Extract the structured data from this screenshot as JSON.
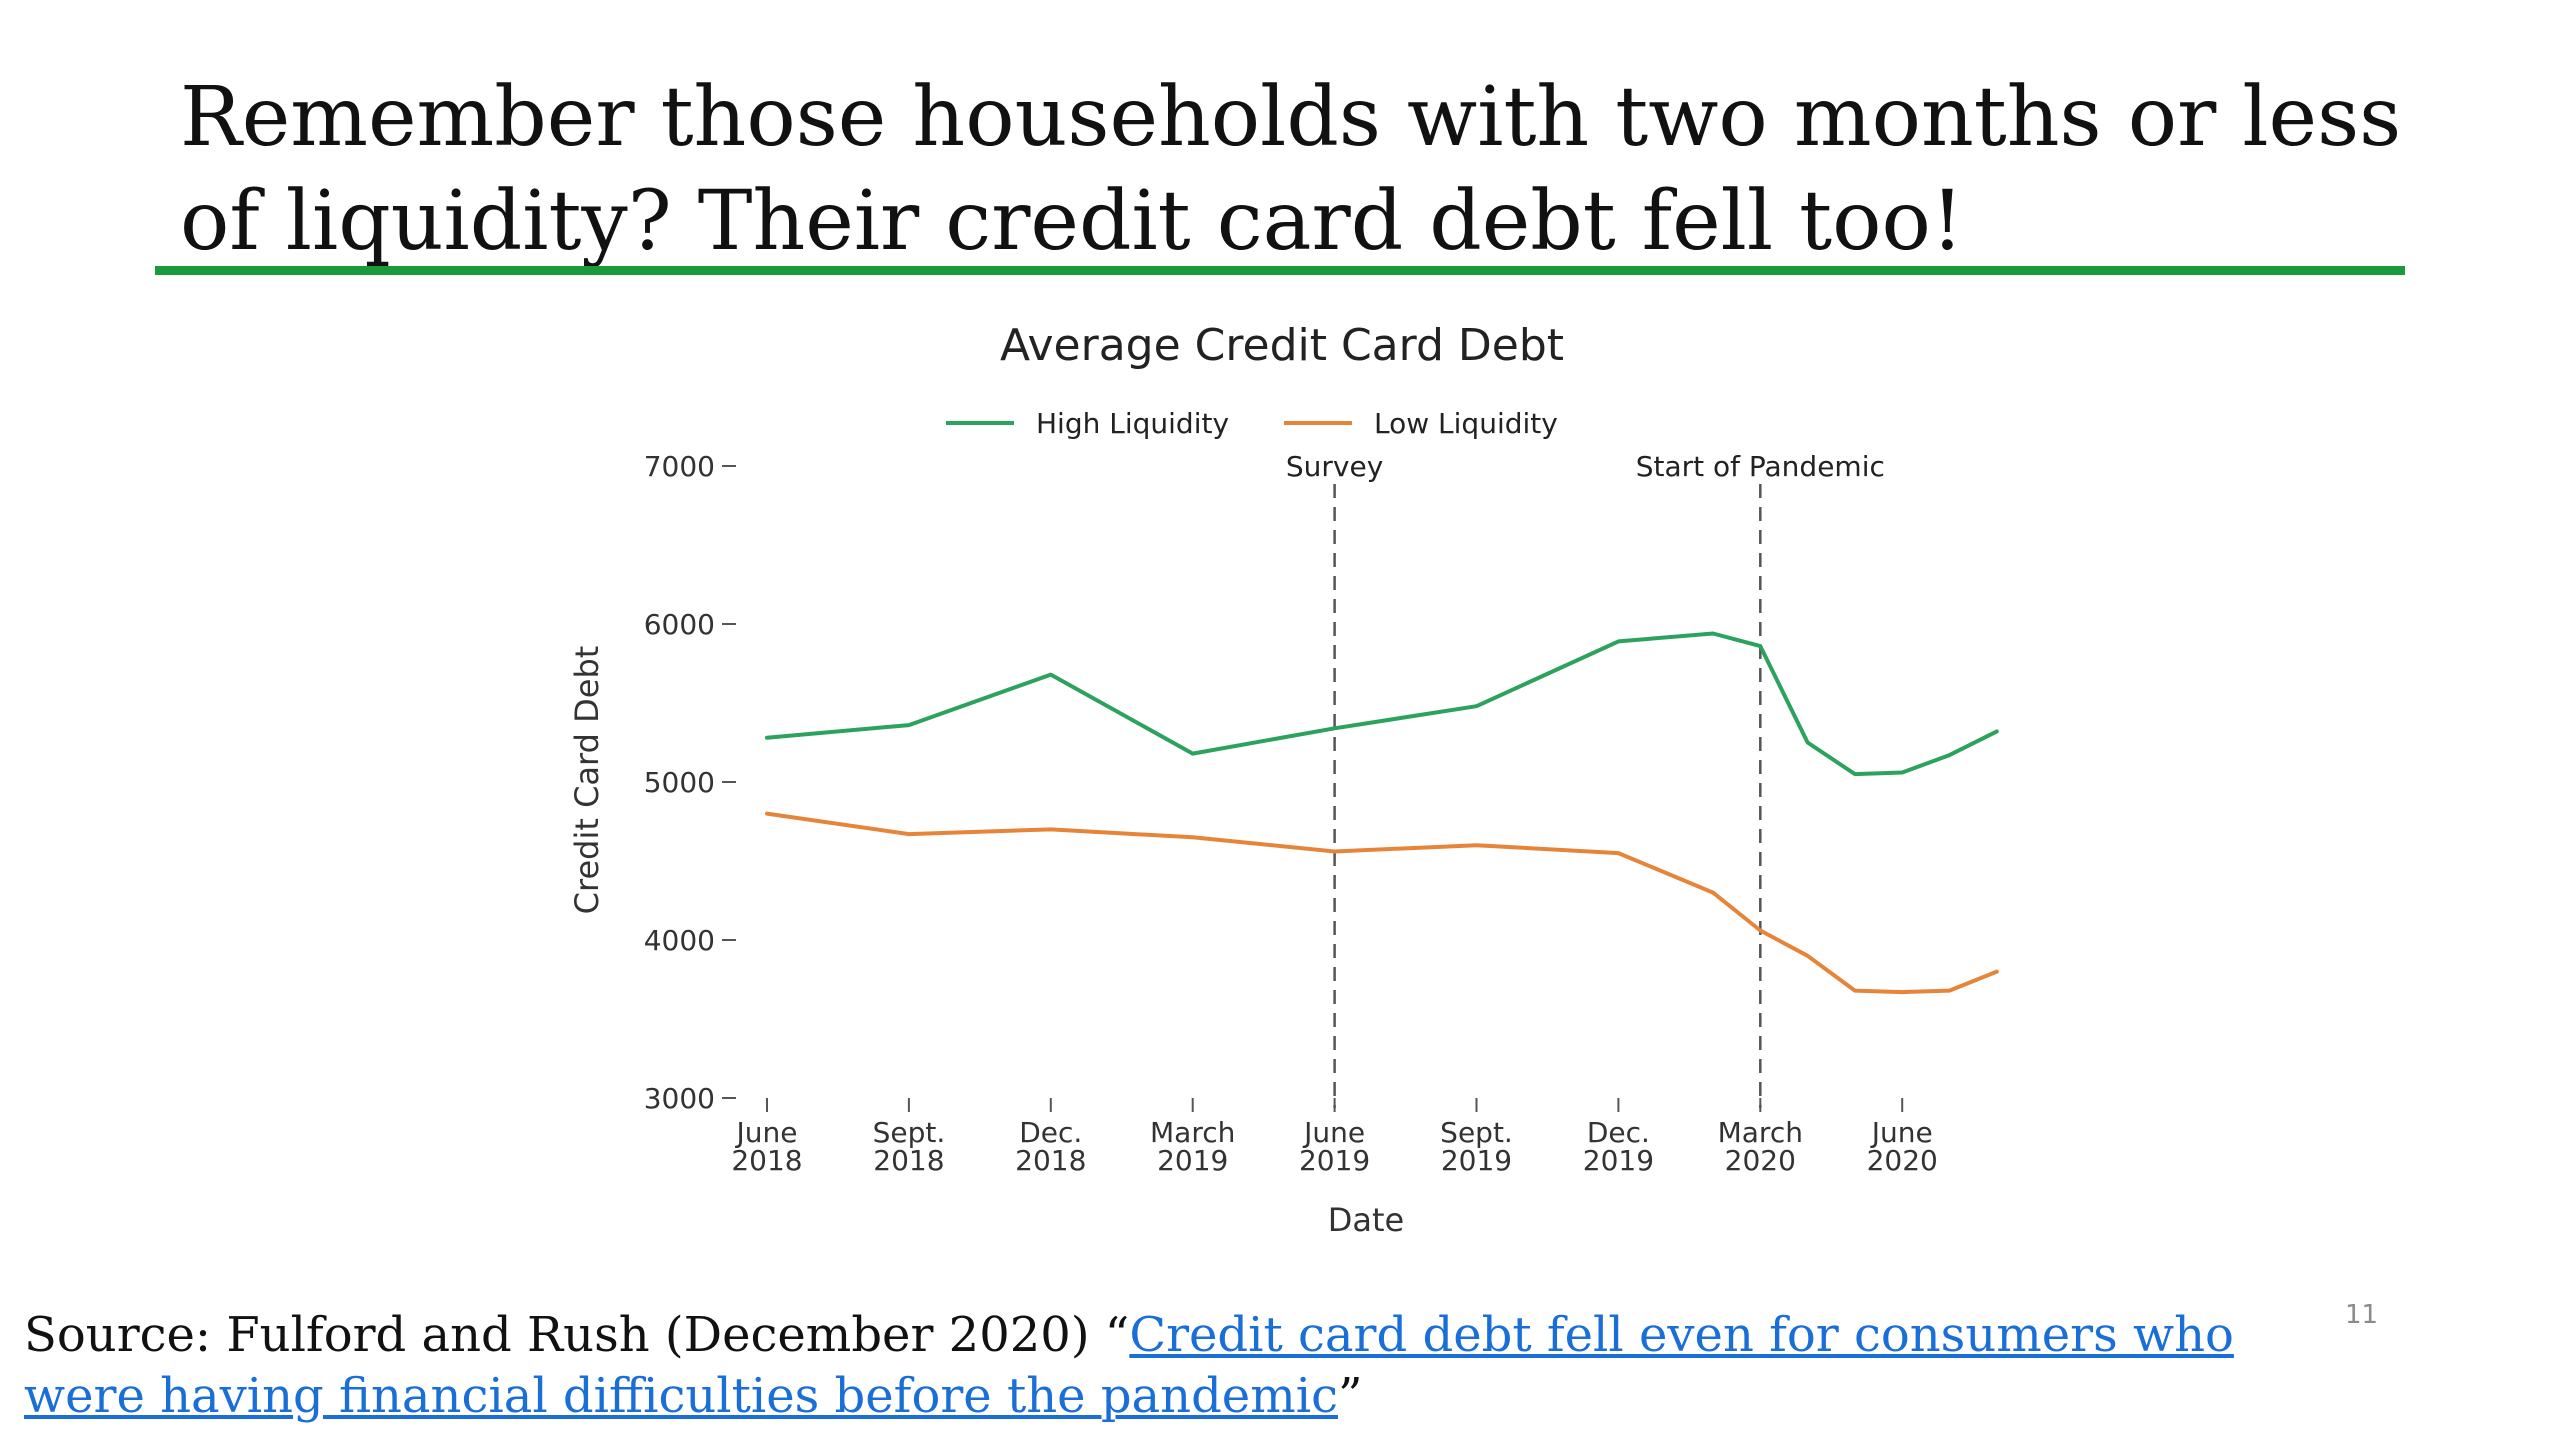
{
  "slide": {
    "title": "Remember those households with two months or less of liquidity? Their credit card debt fell too!",
    "accent_color": "#1a9b3b",
    "number": "11"
  },
  "source": {
    "prefix": "Source: Fulford and Rush (December 2020) “",
    "link_text": "Credit card debt fell even for consumers who were having financial difficulties before the pandemic",
    "suffix": "”",
    "link_color": "#1a6ed8"
  },
  "chart_data": {
    "type": "line",
    "title": "Average Credit Card Debt",
    "xlabel": "Date",
    "ylabel": "Credit Card Debt",
    "ylim": [
      3000,
      7000
    ],
    "yticks": [
      3000,
      4000,
      5000,
      6000,
      7000
    ],
    "xticks": [
      {
        "month": 0,
        "line1": "June",
        "line2": "2018"
      },
      {
        "month": 3,
        "line1": "Sept.",
        "line2": "2018"
      },
      {
        "month": 6,
        "line1": "Dec.",
        "line2": "2018"
      },
      {
        "month": 9,
        "line1": "March",
        "line2": "2019"
      },
      {
        "month": 12,
        "line1": "June",
        "line2": "2019"
      },
      {
        "month": 15,
        "line1": "Sept.",
        "line2": "2019"
      },
      {
        "month": 18,
        "line1": "Dec.",
        "line2": "2019"
      },
      {
        "month": 21,
        "line1": "March",
        "line2": "2020"
      },
      {
        "month": 24,
        "line1": "June",
        "line2": "2020"
      }
    ],
    "x": [
      "2018-06",
      "2018-09",
      "2018-12",
      "2019-03",
      "2019-06",
      "2019-09",
      "2019-12",
      "2020-02",
      "2020-03",
      "2020-04",
      "2020-05",
      "2020-06",
      "2020-07",
      "2020-08"
    ],
    "series": [
      {
        "name": "High Liquidity",
        "color": "#2ca25f",
        "values": [
          5280,
          5360,
          5680,
          5180,
          5340,
          5480,
          5890,
          5940,
          5860,
          5250,
          5050,
          5060,
          5170,
          5320
        ]
      },
      {
        "name": "Low Liquidity",
        "color": "#e6853a",
        "values": [
          4800,
          4670,
          4700,
          4650,
          4560,
          4600,
          4550,
          4300,
          4060,
          3900,
          3680,
          3670,
          3680,
          3800
        ]
      }
    ],
    "annotations": [
      {
        "x": "2019-06",
        "label": "Survey"
      },
      {
        "x": "2020-03",
        "label": "Start of Pandemic"
      }
    ],
    "legend_position": "top",
    "grid": false
  }
}
